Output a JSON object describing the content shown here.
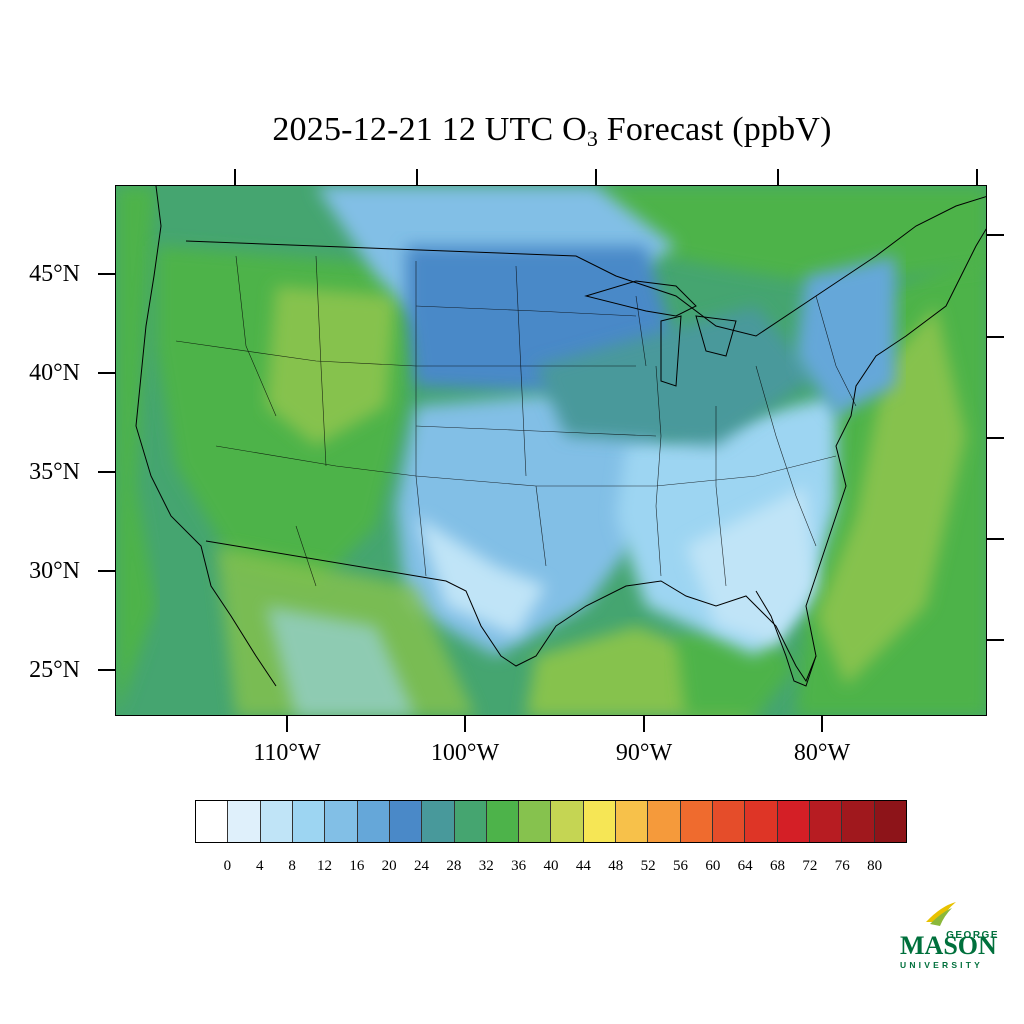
{
  "title": {
    "prefix": "2025-12-21 12 UTC O",
    "subscript": "3",
    "suffix": " Forecast (ppbV)"
  },
  "map": {
    "latitude_labels": [
      "45°N",
      "40°N",
      "35°N",
      "30°N",
      "25°N"
    ],
    "longitude_labels": [
      "110°W",
      "100°W",
      "90°W",
      "80°W"
    ]
  },
  "legend": {
    "colors": [
      "#ffffff",
      "#dff0fb",
      "#c0e4f7",
      "#9dd5f2",
      "#82bfe6",
      "#65a7d9",
      "#4a89c8",
      "#48999b",
      "#45a570",
      "#4db34a",
      "#86c24e",
      "#c5d553",
      "#f6e655",
      "#f7c14a",
      "#f59a3b",
      "#ef6b2e",
      "#e54d2a",
      "#de3526",
      "#d41f26",
      "#b71c22",
      "#a0181d",
      "#8d1419"
    ],
    "labels": [
      "0",
      "4",
      "8",
      "12",
      "16",
      "20",
      "24",
      "28",
      "32",
      "36",
      "40",
      "44",
      "48",
      "52",
      "56",
      "60",
      "64",
      "68",
      "72",
      "76",
      "80"
    ]
  },
  "logo": {
    "top": "GEORGE",
    "main": "MASON",
    "bottom": "UNIVERSITY"
  }
}
